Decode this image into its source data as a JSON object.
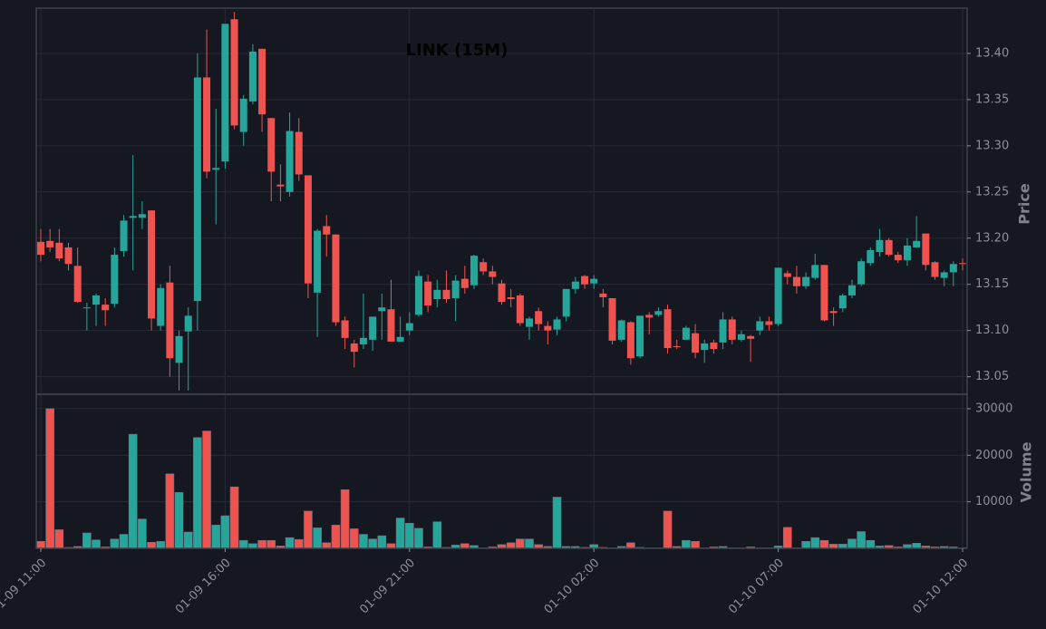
{
  "chart_data": {
    "type": "candlestick",
    "title": "LINK (15M)",
    "ylabel": "Price",
    "volume_ylabel": "Volume",
    "up_color": "#26a69a",
    "down_color": "#ef5350",
    "grid": true,
    "x": [
      "01-09 11:00",
      "01-09 11:15",
      "01-09 11:30",
      "01-09 11:45",
      "01-09 12:00",
      "01-09 12:15",
      "01-09 12:30",
      "01-09 12:45",
      "01-09 13:00",
      "01-09 13:15",
      "01-09 13:30",
      "01-09 13:45",
      "01-09 14:00",
      "01-09 14:15",
      "01-09 14:30",
      "01-09 14:45",
      "01-09 15:00",
      "01-09 15:15",
      "01-09 15:30",
      "01-09 15:45",
      "01-09 16:00",
      "01-09 16:15",
      "01-09 16:30",
      "01-09 16:45",
      "01-09 17:00",
      "01-09 17:15",
      "01-09 17:30",
      "01-09 17:45",
      "01-09 18:00",
      "01-09 18:15",
      "01-09 18:30",
      "01-09 18:45",
      "01-09 19:00",
      "01-09 19:15",
      "01-09 19:30",
      "01-09 19:45",
      "01-09 20:00",
      "01-09 20:15",
      "01-09 20:30",
      "01-09 20:45",
      "01-09 21:00",
      "01-09 21:15",
      "01-09 21:30",
      "01-09 21:45",
      "01-09 22:00",
      "01-09 22:15",
      "01-09 22:30",
      "01-09 22:45",
      "01-09 23:00",
      "01-09 23:15",
      "01-09 23:30",
      "01-09 23:45",
      "01-10 00:00",
      "01-10 00:15",
      "01-10 00:30",
      "01-10 00:45",
      "01-10 01:00",
      "01-10 01:15",
      "01-10 01:30",
      "01-10 01:45",
      "01-10 02:00",
      "01-10 02:15",
      "01-10 02:30",
      "01-10 02:45",
      "01-10 03:00",
      "01-10 03:15",
      "01-10 03:30",
      "01-10 03:45",
      "01-10 04:00",
      "01-10 04:15",
      "01-10 04:30",
      "01-10 04:45",
      "01-10 05:00",
      "01-10 05:15",
      "01-10 05:30",
      "01-10 05:45",
      "01-10 06:00",
      "01-10 06:15",
      "01-10 06:30",
      "01-10 06:45",
      "01-10 07:00",
      "01-10 07:15",
      "01-10 07:30",
      "01-10 07:45",
      "01-10 08:00",
      "01-10 08:15",
      "01-10 08:30",
      "01-10 08:45",
      "01-10 09:00",
      "01-10 09:15",
      "01-10 09:30",
      "01-10 09:45",
      "01-10 10:00",
      "01-10 10:15",
      "01-10 10:30",
      "01-10 10:45",
      "01-10 11:00",
      "01-10 11:15",
      "01-10 11:30",
      "01-10 11:45",
      "01-10 12:00"
    ],
    "open": [
      13.196,
      13.197,
      13.195,
      13.19,
      13.17,
      13.124,
      13.128,
      13.128,
      13.129,
      13.186,
      13.222,
      13.222,
      13.23,
      13.105,
      13.152,
      13.065,
      13.099,
      13.132,
      13.374,
      13.274,
      13.283,
      13.437,
      13.315,
      13.348,
      13.405,
      13.33,
      13.258,
      13.25,
      13.315,
      13.268,
      13.141,
      13.213,
      13.204,
      13.111,
      13.086,
      13.085,
      13.09,
      13.121,
      13.123,
      13.088,
      13.1,
      13.117,
      13.153,
      13.134,
      13.144,
      13.135,
      13.156,
      13.149,
      13.174,
      13.164,
      13.151,
      13.136,
      13.138,
      13.104,
      13.121,
      13.105,
      13.101,
      13.115,
      13.145,
      13.159,
      13.151,
      13.14,
      13.135,
      13.09,
      13.109,
      13.072,
      13.117,
      13.117,
      13.123,
      13.083,
      13.09,
      13.097,
      13.079,
      13.087,
      13.087,
      13.112,
      13.09,
      13.094,
      13.1,
      13.11,
      13.107,
      13.162,
      13.158,
      13.148,
      13.157,
      13.171,
      13.121,
      13.124,
      13.138,
      13.15,
      13.173,
      13.185,
      13.198,
      13.182,
      13.176,
      13.19,
      13.205,
      13.174,
      13.157,
      13.163,
      13.173
    ],
    "high": [
      13.21,
      13.21,
      13.21,
      13.195,
      13.19,
      13.13,
      13.14,
      13.135,
      13.19,
      13.225,
      13.29,
      13.24,
      13.23,
      13.15,
      13.17,
      13.1,
      13.125,
      13.4,
      13.426,
      13.34,
      13.432,
      13.445,
      13.355,
      13.41,
      13.405,
      13.33,
      13.28,
      13.336,
      13.33,
      13.268,
      13.21,
      13.225,
      13.204,
      13.115,
      13.09,
      13.14,
      13.115,
      13.14,
      13.155,
      13.115,
      13.12,
      13.165,
      13.16,
      13.155,
      13.165,
      13.16,
      13.17,
      13.182,
      13.178,
      13.17,
      13.155,
      13.145,
      13.14,
      13.115,
      13.125,
      13.11,
      13.115,
      13.145,
      13.158,
      13.16,
      13.16,
      13.145,
      13.135,
      13.112,
      13.11,
      13.116,
      13.12,
      13.125,
      13.128,
      13.09,
      13.105,
      13.107,
      13.09,
      13.09,
      13.12,
      13.115,
      13.1,
      13.095,
      13.115,
      13.115,
      13.168,
      13.165,
      13.17,
      13.163,
      13.183,
      13.171,
      13.125,
      13.14,
      13.155,
      13.178,
      13.19,
      13.21,
      13.2,
      13.185,
      13.2,
      13.224,
      13.205,
      13.175,
      13.165,
      13.175,
      13.178
    ],
    "low": [
      13.175,
      13.185,
      13.175,
      13.165,
      13.13,
      13.1,
      13.105,
      13.105,
      13.125,
      13.18,
      13.165,
      13.21,
      13.1,
      13.1,
      13.05,
      13.035,
      13.035,
      13.1,
      13.265,
      13.215,
      13.275,
      13.318,
      13.3,
      13.345,
      13.315,
      13.24,
      13.24,
      13.245,
      13.262,
      13.135,
      13.093,
      13.18,
      13.105,
      13.08,
      13.06,
      13.08,
      13.078,
      13.09,
      13.088,
      13.088,
      13.095,
      13.115,
      13.12,
      13.125,
      13.13,
      13.11,
      13.14,
      13.145,
      13.16,
      13.15,
      13.128,
      13.125,
      13.105,
      13.09,
      13.1,
      13.085,
      13.095,
      13.11,
      13.14,
      13.145,
      13.145,
      13.125,
      13.085,
      13.088,
      13.063,
      13.07,
      13.096,
      13.115,
      13.075,
      13.08,
      13.09,
      13.07,
      13.065,
      13.075,
      13.08,
      13.085,
      13.088,
      13.066,
      13.095,
      13.1,
      13.105,
      13.15,
      13.14,
      13.145,
      13.155,
      13.11,
      13.105,
      13.12,
      13.135,
      13.148,
      13.17,
      13.18,
      13.18,
      13.173,
      13.17,
      13.19,
      13.165,
      13.155,
      13.148,
      13.148,
      13.165
    ],
    "close": [
      13.182,
      13.19,
      13.178,
      13.172,
      13.131,
      13.125,
      13.138,
      13.122,
      13.182,
      13.219,
      13.224,
      13.226,
      13.113,
      13.146,
      13.07,
      13.094,
      13.116,
      13.374,
      13.272,
      13.276,
      13.432,
      13.322,
      13.351,
      13.402,
      13.334,
      13.272,
      13.256,
      13.316,
      13.269,
      13.151,
      13.208,
      13.204,
      13.109,
      13.092,
      13.077,
      13.092,
      13.115,
      13.125,
      13.088,
      13.093,
      13.108,
      13.159,
      13.127,
      13.144,
      13.134,
      13.154,
      13.146,
      13.181,
      13.164,
      13.158,
      13.131,
      13.134,
      13.108,
      13.113,
      13.107,
      13.1,
      13.112,
      13.145,
      13.153,
      13.15,
      13.156,
      13.136,
      13.089,
      13.111,
      13.07,
      13.116,
      13.114,
      13.121,
      13.081,
      13.082,
      13.103,
      13.076,
      13.086,
      13.08,
      13.112,
      13.09,
      13.096,
      13.091,
      13.11,
      13.106,
      13.168,
      13.158,
      13.148,
      13.158,
      13.171,
      13.111,
      13.119,
      13.138,
      13.149,
      13.175,
      13.187,
      13.198,
      13.182,
      13.176,
      13.192,
      13.197,
      13.171,
      13.158,
      13.163,
      13.172,
      13.172
    ],
    "volume": [
      1500,
      30000,
      4000,
      200,
      400,
      3300,
      1800,
      300,
      2000,
      3000,
      24500,
      6300,
      1300,
      1500,
      16000,
      12000,
      3500,
      23800,
      25200,
      5000,
      7000,
      13200,
      1700,
      1000,
      1700,
      1700,
      500,
      2300,
      1900,
      8000,
      4400,
      1200,
      5000,
      12600,
      4200,
      3000,
      2000,
      2700,
      1000,
      6500,
      5400,
      4300,
      300,
      5700,
      200,
      700,
      1000,
      600,
      100,
      300,
      800,
      1200,
      2000,
      2000,
      800,
      400,
      11000,
      400,
      400,
      200,
      800,
      200,
      100,
      400,
      1200,
      200,
      100,
      100,
      8000,
      400,
      1700,
      1500,
      100,
      300,
      400,
      100,
      100,
      300,
      100,
      100,
      500,
      4500,
      100,
      1500,
      2300,
      1700,
      900,
      900,
      2000,
      3600,
      1700,
      500,
      600,
      300,
      800,
      1100,
      500,
      300,
      400,
      300,
      100
    ],
    "ylim": [
      13.031,
      13.449
    ],
    "yticks": [
      13.05,
      {
        "value": 13.1,
        "label": "13.10"
      },
      13.15,
      {
        "value": 13.2,
        "label": "13.20"
      },
      13.25,
      {
        "value": 13.3,
        "label": "13.30"
      },
      13.35,
      {
        "value": 13.4,
        "label": "13.40"
      }
    ],
    "volume_ylim": [
      0,
      33100
    ],
    "volume_yticks": [
      10000,
      20000,
      30000
    ],
    "xticks": [
      "01-09 11:00",
      "01-09 16:00",
      "01-09 21:00",
      "01-10 02:00",
      "01-10 07:00",
      "01-10 12:00"
    ]
  }
}
